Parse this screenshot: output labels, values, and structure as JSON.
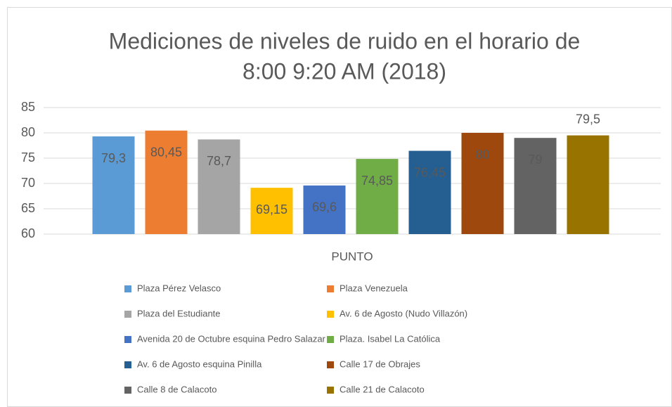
{
  "chart_data": {
    "type": "bar",
    "title": [
      "Mediciones de niveles de ruido en el horario de",
      "8:00 9:20 AM (2018)"
    ],
    "categories": [
      "PUNTO"
    ],
    "series": [
      {
        "name": "Plaza Pérez Velasco",
        "color": "#5b9bd5",
        "values": [
          79.3
        ],
        "value_labels": [
          "79,3"
        ]
      },
      {
        "name": "Plaza  Venezuela",
        "color": "#ed7d31",
        "values": [
          80.45
        ],
        "value_labels": [
          "80,45"
        ]
      },
      {
        "name": "Plaza del Estudiante",
        "color": "#a5a5a5",
        "values": [
          78.7
        ],
        "value_labels": [
          "78,7"
        ]
      },
      {
        "name": "Av. 6 de Agosto (Nudo Villazón)",
        "color": "#ffc000",
        "values": [
          69.15
        ],
        "value_labels": [
          "69,15"
        ]
      },
      {
        "name": "Avenida 20 de Octubre esquina Pedro Salazar",
        "color": "#4472c4",
        "values": [
          69.6
        ],
        "value_labels": [
          "69,6"
        ]
      },
      {
        "name": "Plaza. Isabel La Católica",
        "color": "#70ad47",
        "values": [
          74.85
        ],
        "value_labels": [
          "74,85"
        ]
      },
      {
        "name": "Av. 6 de Agosto esquina Pinilla",
        "color": "#255e91",
        "values": [
          76.45
        ],
        "value_labels": [
          "76,45"
        ]
      },
      {
        "name": "Calle 17 de Obrajes",
        "color": "#9e480e",
        "values": [
          80
        ]
      },
      {
        "name": "Calle 8 de Calacoto",
        "color": "#636363",
        "values": [
          79
        ]
      },
      {
        "name": "Calle 21 de Calacoto",
        "color": "#997300",
        "values": [
          79.5
        ],
        "value_labels": [
          "79,5"
        ],
        "label_position": "outside_end"
      }
    ],
    "ylim": [
      60,
      85
    ],
    "yticks": [
      60,
      65,
      70,
      75,
      80,
      85
    ],
    "grid": true,
    "legend": "bottom"
  }
}
